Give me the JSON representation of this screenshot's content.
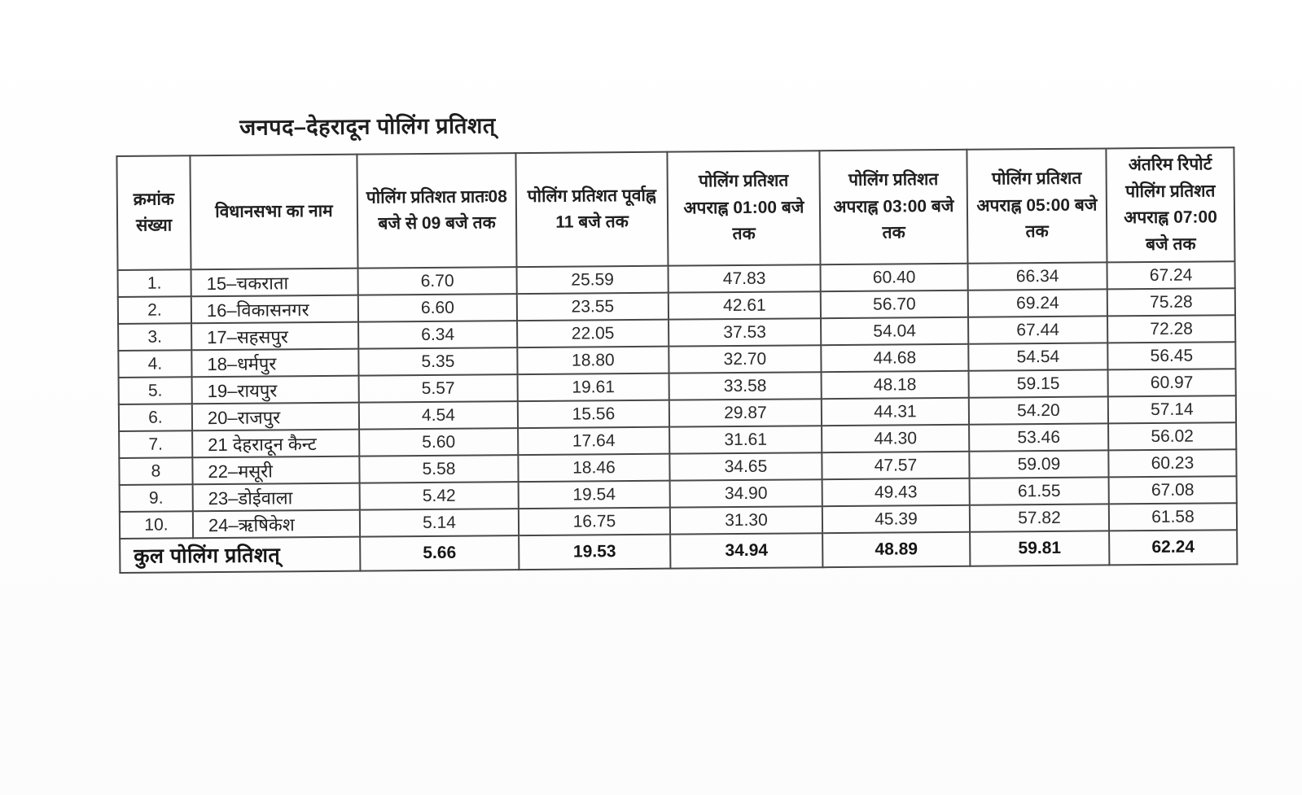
{
  "page": {
    "title": "जनपद–देहरादून पोलिंग प्रतिशत्"
  },
  "table": {
    "headers": [
      "क्रमांक संख्या",
      "विधानसभा का नाम",
      "पोलिंग प्रतिशत प्रातः08 बजे से 09 बजे तक",
      "पोलिंग प्रतिशत पूर्वाह्न 11 बजे तक",
      "पोलिंग प्रतिशत अपराह्न 01:00 बजे तक",
      "पोलिंग प्रतिशत अपराह्न 03:00 बजे तक",
      "पोलिंग प्रतिशत अपराह्न 05:00 बजे तक",
      "अंतरिम रिपोर्ट पोलिंग प्रतिशत अपराह्न 07:00 बजे तक"
    ],
    "rows": [
      {
        "serial": "1.",
        "name": "15–चकराता",
        "values": [
          "6.70",
          "25.59",
          "47.83",
          "60.40",
          "66.34",
          "67.24"
        ]
      },
      {
        "serial": "2.",
        "name": "16–विकासनगर",
        "values": [
          "6.60",
          "23.55",
          "42.61",
          "56.70",
          "69.24",
          "75.28"
        ]
      },
      {
        "serial": "3.",
        "name": "17–सहसपुर",
        "values": [
          "6.34",
          "22.05",
          "37.53",
          "54.04",
          "67.44",
          "72.28"
        ]
      },
      {
        "serial": "4.",
        "name": "18–धर्मपुर",
        "values": [
          "5.35",
          "18.80",
          "32.70",
          "44.68",
          "54.54",
          "56.45"
        ]
      },
      {
        "serial": "5.",
        "name": "19–रायपुर",
        "values": [
          "5.57",
          "19.61",
          "33.58",
          "48.18",
          "59.15",
          "60.97"
        ]
      },
      {
        "serial": "6.",
        "name": "20–राजपुर",
        "values": [
          "4.54",
          "15.56",
          "29.87",
          "44.31",
          "54.20",
          "57.14"
        ]
      },
      {
        "serial": "7.",
        "name": "21 देहरादून कैन्ट",
        "values": [
          "5.60",
          "17.64",
          "31.61",
          "44.30",
          "53.46",
          "56.02"
        ]
      },
      {
        "serial": "8",
        "name": "22–मसूरी",
        "values": [
          "5.58",
          "18.46",
          "34.65",
          "47.57",
          "59.09",
          "60.23"
        ]
      },
      {
        "serial": "9.",
        "name": "23–डोईवाला",
        "values": [
          "5.42",
          "19.54",
          "34.90",
          "49.43",
          "61.55",
          "67.08"
        ]
      },
      {
        "serial": "10.",
        "name": "24–ऋषिकेश",
        "values": [
          "5.14",
          "16.75",
          "31.30",
          "45.39",
          "57.82",
          "61.58"
        ]
      }
    ],
    "total": {
      "label": "कुल पोलिंग प्रतिशत्",
      "values": [
        "5.66",
        "19.53",
        "34.94",
        "48.89",
        "59.81",
        "62.24"
      ]
    }
  }
}
